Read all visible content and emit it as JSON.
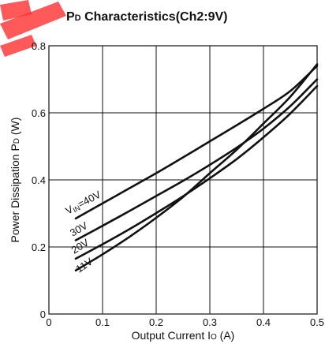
{
  "chart_data": {
    "type": "line",
    "title": {
      "p": "P",
      "d": "D",
      "rest": " Characteristics(Ch2:9V)"
    },
    "xlabel": {
      "main": "Output Current I",
      "sub": "O",
      "unit": " (A)"
    },
    "ylabel": {
      "main": "Power Dissipation P",
      "sub": "D",
      "unit": " (W)"
    },
    "xlim": [
      0,
      0.5
    ],
    "ylim": [
      0,
      0.8
    ],
    "x_ticks": [
      "0",
      "0.1",
      "0.2",
      "0.3",
      "0.4",
      "0.5"
    ],
    "y_ticks": [
      "0",
      "0.2",
      "0.4",
      "0.6",
      "0.8"
    ],
    "grid": true,
    "series": [
      {
        "name": "V=40V",
        "label": {
          "prefix": "V",
          "sub": "IN",
          "suffix": "=40V"
        },
        "x": [
          0.05,
          0.1,
          0.15,
          0.2,
          0.25,
          0.3,
          0.35,
          0.4,
          0.45,
          0.5
        ],
        "y": [
          0.285,
          0.33,
          0.375,
          0.42,
          0.467,
          0.515,
          0.563,
          0.612,
          0.665,
          0.74
        ]
      },
      {
        "name": "30V",
        "label": {
          "prefix": "",
          "sub": "",
          "suffix": "30V"
        },
        "x": [
          0.05,
          0.1,
          0.15,
          0.2,
          0.25,
          0.3,
          0.35,
          0.4,
          0.45,
          0.5
        ],
        "y": [
          0.22,
          0.263,
          0.307,
          0.352,
          0.397,
          0.445,
          0.496,
          0.553,
          0.62,
          0.7
        ]
      },
      {
        "name": "20V",
        "label": {
          "prefix": "",
          "sub": "",
          "suffix": "20V"
        },
        "x": [
          0.05,
          0.1,
          0.15,
          0.2,
          0.25,
          0.3,
          0.35,
          0.4,
          0.45,
          0.5
        ],
        "y": [
          0.165,
          0.208,
          0.253,
          0.301,
          0.351,
          0.405,
          0.462,
          0.527,
          0.598,
          0.68
        ]
      },
      {
        "name": "11V",
        "label": {
          "prefix": "",
          "sub": "",
          "suffix": "11V"
        },
        "x": [
          0.05,
          0.1,
          0.15,
          0.2,
          0.25,
          0.3,
          0.35,
          0.4,
          0.45,
          0.5
        ],
        "y": [
          0.13,
          0.178,
          0.23,
          0.287,
          0.349,
          0.42,
          0.49,
          0.568,
          0.648,
          0.745
        ]
      }
    ]
  }
}
